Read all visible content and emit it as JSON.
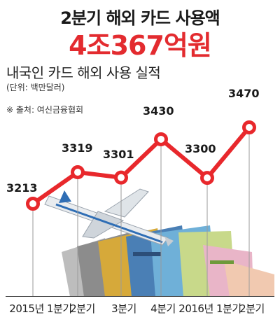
{
  "header": {
    "subtitle": "2분기 해외 카드 사용액",
    "headline": "4조367억원"
  },
  "chart_title": "내국인 카드 해외 사용 실적",
  "unit": "(단위: 백만달러)",
  "source": "※ 출처: 여신금융협회",
  "colors": {
    "line": "#e8282c",
    "marker_fill": "#ffffff",
    "headline": "#e32b2f"
  },
  "chart_data": {
    "type": "line",
    "title": "내국인 카드 해외 사용 실적",
    "categories": [
      "2015년 1분기",
      "2분기",
      "3분기",
      "4분기",
      "2016년 1분기",
      "2분기"
    ],
    "values": [
      3213,
      3319,
      3301,
      3430,
      3300,
      3470
    ],
    "data_labels": [
      "3213",
      "3319",
      "3301",
      "3430",
      "3300",
      "3470"
    ],
    "unit": "백만달러",
    "grid": false,
    "legend": "none"
  }
}
